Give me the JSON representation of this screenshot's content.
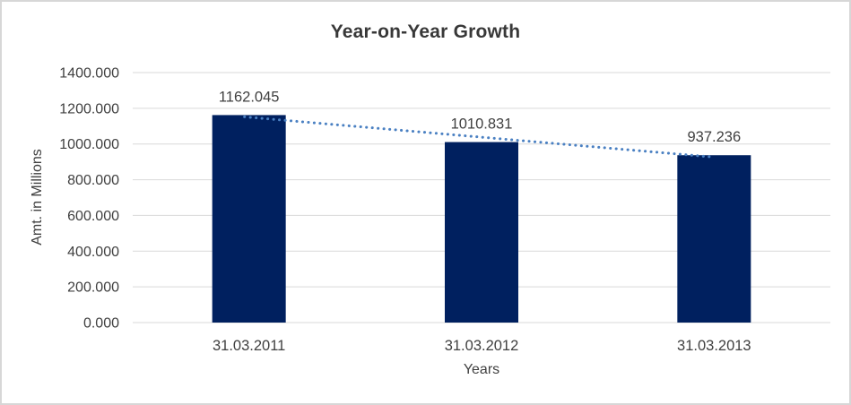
{
  "chart_data": {
    "type": "bar",
    "title": "Year-on-Year Growth",
    "categories": [
      "31.03.2011",
      "31.03.2012",
      "31.03.2013"
    ],
    "values": [
      1162.045,
      1010.831,
      937.236
    ],
    "data_labels": [
      "1162.045",
      "1010.831",
      "937.236"
    ],
    "xlabel": "Years",
    "ylabel": "Amt. in Millions",
    "ylim": [
      0,
      1400
    ],
    "ytick_step": 200,
    "ytick_labels": [
      "0.000",
      "200.000",
      "400.000",
      "600.000",
      "800.000",
      "1000.000",
      "1200.000",
      "1400.000"
    ],
    "grid": true,
    "legend": "none",
    "trendline": {
      "style": "dotted",
      "from_label": "1162.045",
      "to_label": "937.236"
    },
    "colors": {
      "bar": "#00205f",
      "trendline": "#4a80c2",
      "gridline": "#d9d9d9",
      "label_text": "#404040",
      "title_text": "#383838",
      "background": "#ffffff",
      "border": "#d7d7d7"
    }
  }
}
